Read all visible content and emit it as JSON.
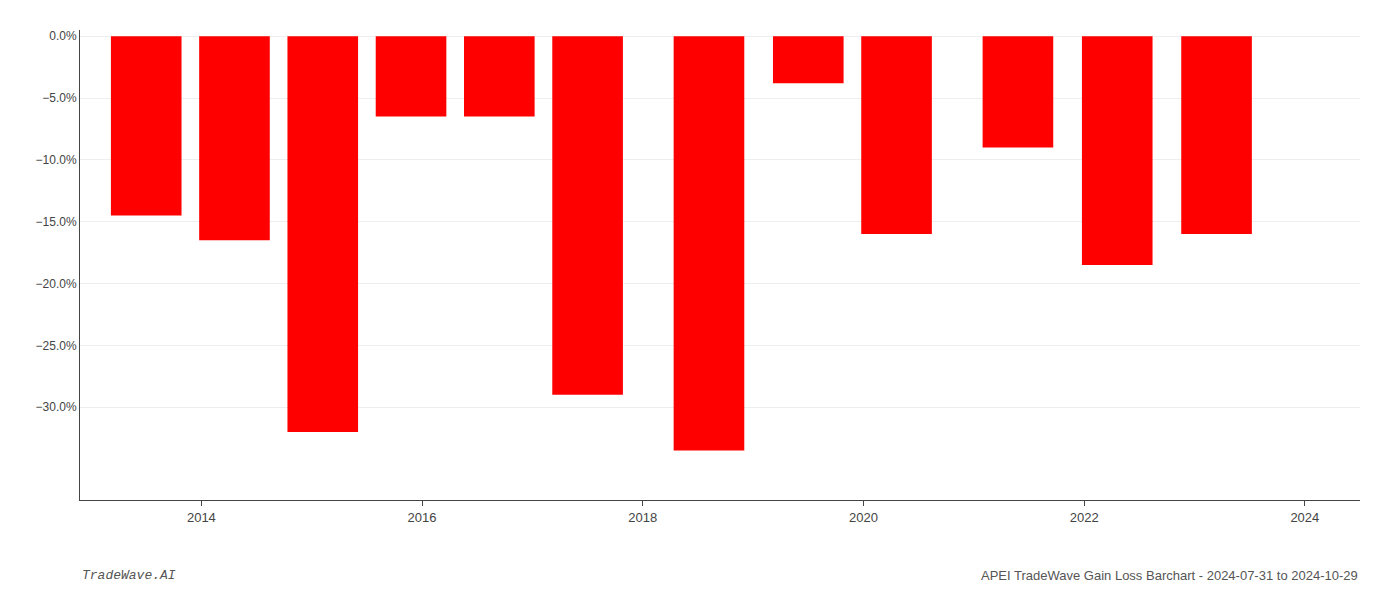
{
  "chart_data": {
    "type": "bar",
    "x": [
      2013.5,
      2014.3,
      2015.1,
      2015.9,
      2016.7,
      2017.5,
      2018.6,
      2019.5,
      2020.3,
      2021.4,
      2022.3,
      2023.2
    ],
    "values": [
      -0.145,
      -0.165,
      -0.32,
      -0.065,
      -0.065,
      -0.29,
      -0.335,
      -0.038,
      -0.16,
      -0.09,
      -0.185,
      -0.16
    ],
    "color": "#ff0000",
    "xlim": [
      2012.9,
      2024.5
    ],
    "xticks": [
      2014,
      2016,
      2018,
      2020,
      2022,
      2024
    ],
    "ylim": [
      -0.375,
      0.005
    ],
    "yticks": [
      {
        "value": 0.0,
        "label": "0.0%"
      },
      {
        "value": -0.05,
        "label": "−5.0%"
      },
      {
        "value": -0.1,
        "label": "−10.0%"
      },
      {
        "value": -0.15,
        "label": "−15.0%"
      },
      {
        "value": -0.2,
        "label": "−20.0%"
      },
      {
        "value": -0.25,
        "label": "−25.0%"
      },
      {
        "value": -0.3,
        "label": "−30.0%"
      }
    ],
    "grid": true,
    "annotations": [
      "TradeWave.AI",
      "APEI TradeWave Gain Loss Barchart - 2024-07-31 to 2024-10-29"
    ]
  }
}
